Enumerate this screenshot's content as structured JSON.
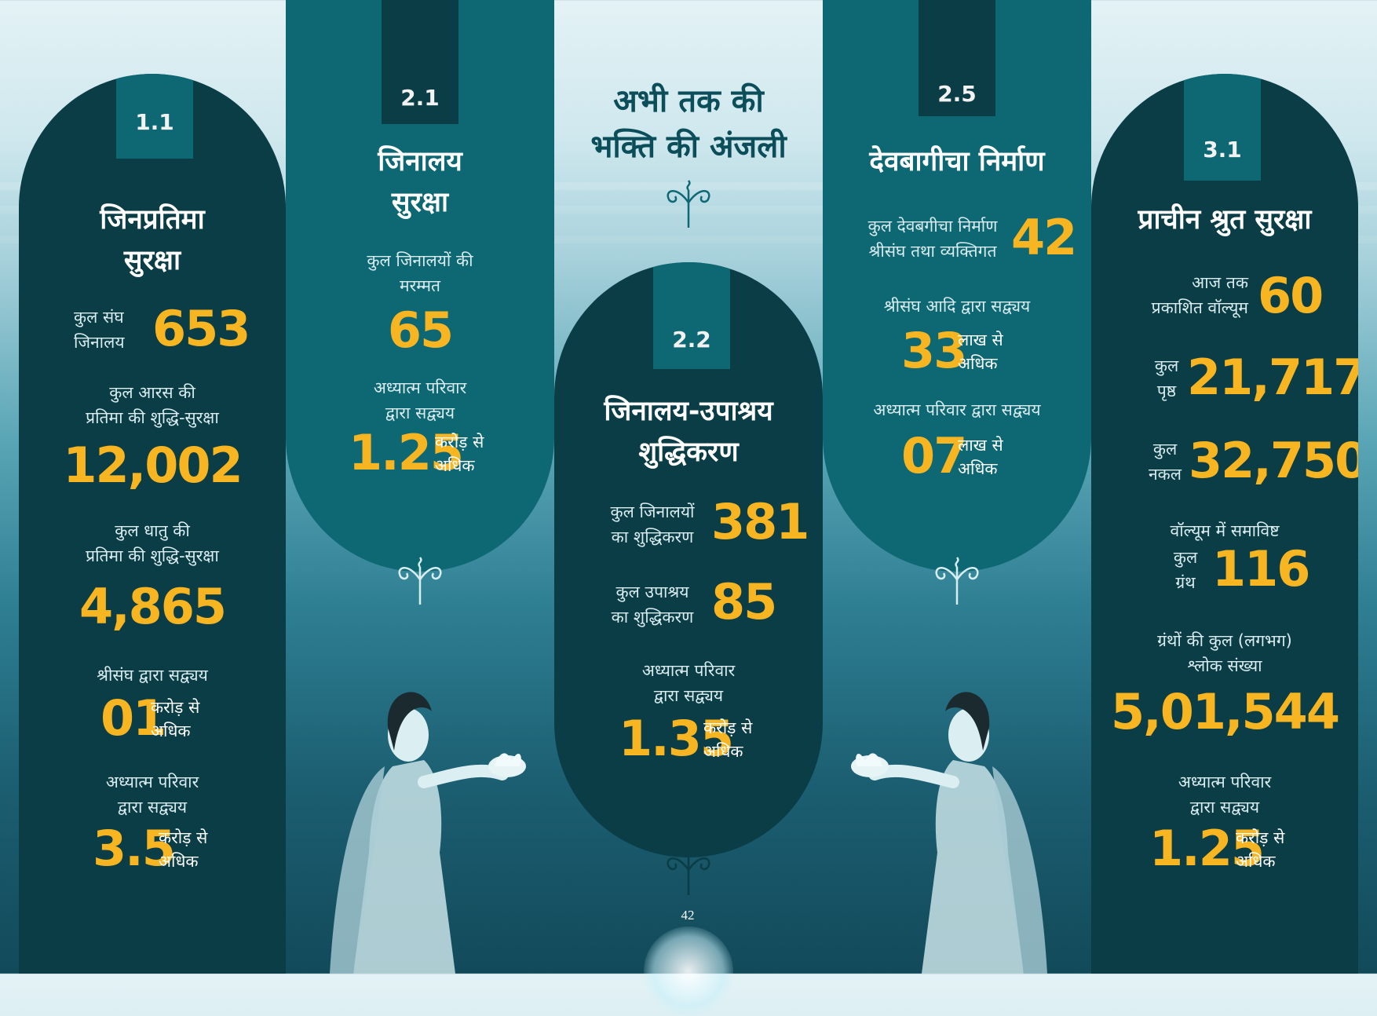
{
  "heading": {
    "line1": "अभी तक की",
    "line2": "भक्ति की अंजली"
  },
  "page_number": "42",
  "panels": {
    "p1": {
      "tab": "1.1",
      "title_l1": "जिनप्रतिमा",
      "title_l2": "सुरक्षा",
      "s1_label_l1": "कुल संघ",
      "s1_label_l2": "जिनालय",
      "s1_value": "653",
      "s2_label_l1": "कुल आरस की",
      "s2_label_l2": "प्रतिमा की शुद्धि-सुरक्षा",
      "s2_value": "12,002",
      "s3_label_l1": "कुल धातु की",
      "s3_label_l2": "प्रतिमा की शुद्धि-सुरक्षा",
      "s3_value": "4,865",
      "s4_label": "श्रीसंघ द्वारा सद्व्यय",
      "s4_value": "01",
      "s4_unit_l1": "करोड़ से",
      "s4_unit_l2": "अधिक",
      "s5_label_l1": "अध्यात्म परिवार",
      "s5_label_l2": "द्वारा सद्व्यय",
      "s5_value": "3.5",
      "s5_unit_l1": "करोड़ से",
      "s5_unit_l2": "अधिक"
    },
    "p2": {
      "tab": "2.1",
      "title_l1": "जिनालय",
      "title_l2": "सुरक्षा",
      "s1_label_l1": "कुल जिनालयों की",
      "s1_label_l2": "मरम्मत",
      "s1_value": "65",
      "s2_label_l1": "अध्यात्म परिवार",
      "s2_label_l2": "द्वारा सद्व्यय",
      "s2_value": "1.25",
      "s2_unit_l1": "करोड़ से",
      "s2_unit_l2": "अधिक"
    },
    "p3": {
      "tab": "2.2",
      "title_l1": "जिनालय-उपाश्रय",
      "title_l2": "शुद्धिकरण",
      "s1_label_l1": "कुल जिनालयों",
      "s1_label_l2": "का शुद्धिकरण",
      "s1_value": "381",
      "s2_label_l1": "कुल उपाश्रय",
      "s2_label_l2": "का शुद्धिकरण",
      "s2_value": "85",
      "s3_label_l1": "अध्यात्म परिवार",
      "s3_label_l2": "द्वारा सद्व्यय",
      "s3_value": "1.35",
      "s3_unit_l1": "करोड़ से",
      "s3_unit_l2": "अधिक"
    },
    "p4": {
      "tab": "2.5",
      "title": "देवबागीचा निर्माण",
      "s1_label_l1": "कुल देवबगीचा निर्माण",
      "s1_label_l2": "श्रीसंघ तथा व्यक्तिगत",
      "s1_value": "42",
      "s2_label": "श्रीसंघ आदि द्वारा सद्व्यय",
      "s2_value": "33",
      "s2_unit_l1": "लाख से",
      "s2_unit_l2": "अधिक",
      "s3_label": "अध्यात्म परिवार द्वारा सद्व्यय",
      "s3_value": "07",
      "s3_unit_l1": "लाख से",
      "s3_unit_l2": "अधिक"
    },
    "p5": {
      "tab": "3.1",
      "title": "प्राचीन श्रुत सुरक्षा",
      "s1_label_l1": "आज तक",
      "s1_label_l2": "प्रकाशित वॉल्यूम",
      "s1_value": "60",
      "s2_label_l1": "कुल",
      "s2_label_l2": "पृष्ठ",
      "s2_value": "21,717",
      "s3_label_l1": "कुल",
      "s3_label_l2": "नकल",
      "s3_value": "32,750",
      "s4_label_top": "वॉल्यूम में समाविष्ट",
      "s4_label_l1": "कुल",
      "s4_label_l2": "ग्रंथ",
      "s4_value": "116",
      "s5_label_l1": "ग्रंथों की कुल (लगभग)",
      "s5_label_l2": "श्लोक संख्या",
      "s5_value": "5,01,544",
      "s6_label_l1": "अध्यात्म परिवार",
      "s6_label_l2": "द्वारा सद्व्यय",
      "s6_value": "1.25",
      "s6_unit_l1": "करोड़ से",
      "s6_unit_l2": "अधिक"
    }
  },
  "colors": {
    "dark_panel": "#0b3d46",
    "mid_panel": "#0e6873",
    "number_accent": "#f7b522",
    "heading": "#0b4e5a"
  },
  "icons": [
    "floral-ornament-icon",
    "devotee-figure-left",
    "devotee-figure-right"
  ]
}
